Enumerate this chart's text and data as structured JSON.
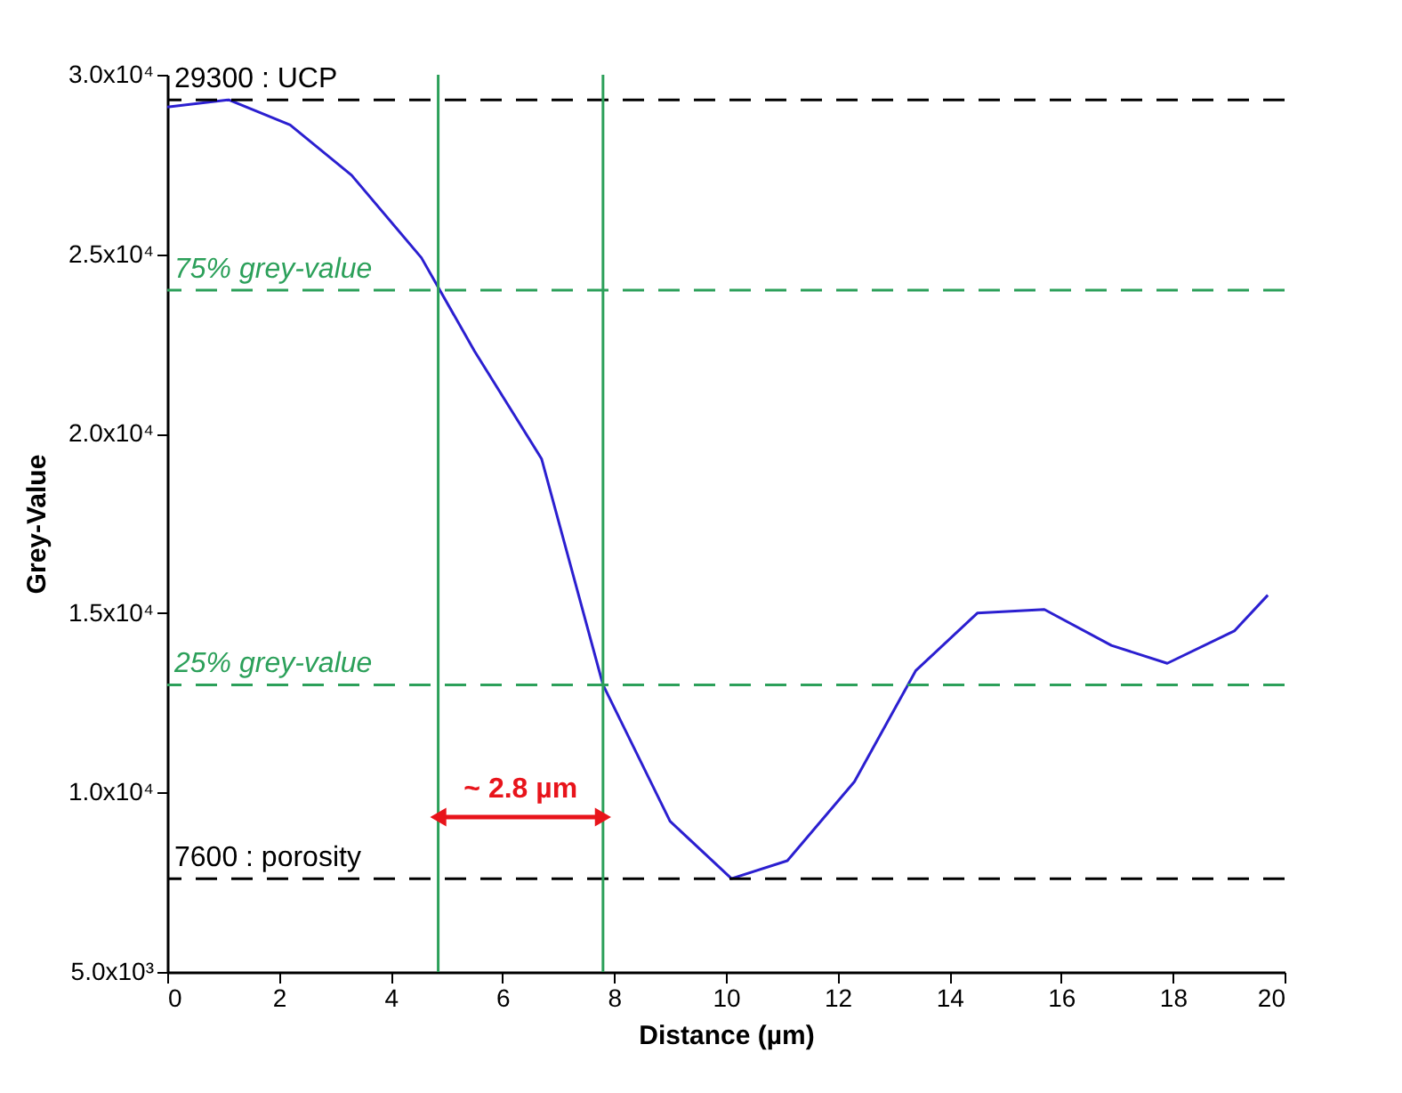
{
  "chart_data": {
    "type": "line",
    "xlabel": "Distance (µm)",
    "ylabel": "Grey-Value",
    "series": [
      {
        "color": "#2b1fd0",
        "x": [
          0,
          1.1,
          2.2,
          3.3,
          4.55,
          5.5,
          6.7,
          7.8,
          9.0,
          10.1,
          11.1,
          12.3,
          13.4,
          14.5,
          15.7,
          16.9,
          17.9,
          19.1,
          19.7
        ],
        "values": [
          29100,
          29300,
          28600,
          27200,
          24900,
          22300,
          19300,
          13000,
          9200,
          7600,
          8100,
          10300,
          13400,
          15000,
          15100,
          14100,
          13600,
          14500,
          15500
        ]
      }
    ],
    "xlim": [
      0,
      20
    ],
    "xticks": [
      0,
      2,
      4,
      6,
      8,
      10,
      12,
      14,
      16,
      18,
      20
    ],
    "ylim": [
      5000,
      30000
    ],
    "yticks": [
      {
        "value": 5000,
        "label": "5.0x10³"
      },
      {
        "value": 10000,
        "label": "1.0x10⁴"
      },
      {
        "value": 15000,
        "label": "1.5x10⁴"
      },
      {
        "value": 20000,
        "label": "2.0x10⁴"
      },
      {
        "value": 25000,
        "label": "2.5x10⁴"
      },
      {
        "value": 30000,
        "label": "3.0x10⁴"
      }
    ],
    "ref_lines": [
      {
        "axis": "y",
        "value": 29300,
        "label": "29300 : UCP",
        "color": "#000000",
        "line_style": "dashed"
      },
      {
        "axis": "y",
        "value": 24000,
        "label": "75% grey-value",
        "color": "#2ca05a",
        "line_style": "dashed"
      },
      {
        "axis": "y",
        "value": 13000,
        "label": "25% grey-value",
        "color": "#2ca05a",
        "line_style": "dashed"
      },
      {
        "axis": "y",
        "value": 7600,
        "label": "7600 : porosity",
        "color": "#000000",
        "line_style": "dashed"
      },
      {
        "axis": "x",
        "value": 4.85,
        "color": "#2ca05a",
        "line_style": "solid"
      },
      {
        "axis": "x",
        "value": 7.8,
        "color": "#2ca05a",
        "line_style": "solid"
      }
    ],
    "annotations": [
      "~ 2.8 µm"
    ],
    "grid": false
  }
}
